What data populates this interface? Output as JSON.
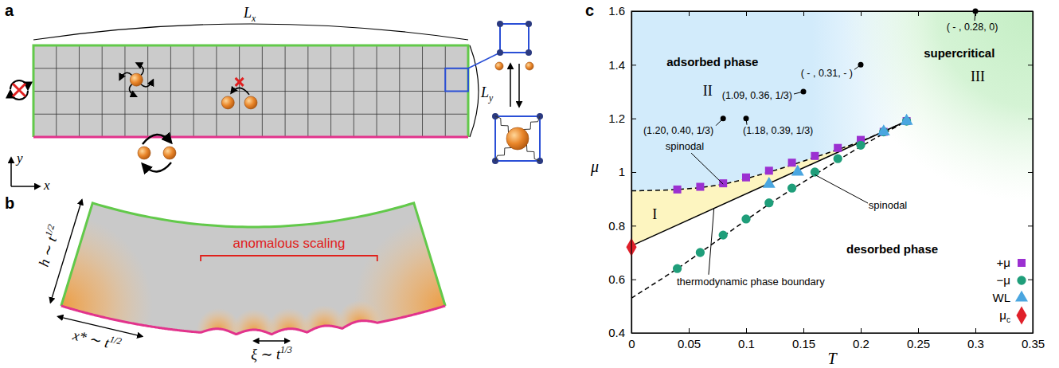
{
  "diagram_a": {
    "letter": "a",
    "length_x": {
      "text": "L",
      "sub": "x"
    },
    "length_y": {
      "text": "L",
      "sub": "y"
    },
    "axis_x": "x",
    "axis_y": "y"
  },
  "diagram_b": {
    "letter": "b",
    "height": {
      "text": "h ∼ t",
      "sup": "1/2"
    },
    "front": {
      "text": "x* ∼ t",
      "sup": "1/2"
    },
    "spacing": {
      "text": "ξ ∼ t",
      "sup": "1/3"
    },
    "region": "anomalous scaling"
  },
  "chart_data": {
    "letter": "c",
    "type": "scatter",
    "x_label": "T",
    "y_label": "μ",
    "xlim": [
      0,
      0.35
    ],
    "xticks": [
      0,
      0.05,
      0.1,
      0.15,
      0.2,
      0.25,
      0.3,
      0.35
    ],
    "ylim": [
      0.4,
      1.6
    ],
    "yticks": [
      0.4,
      0.6,
      0.8,
      1,
      1.2,
      1.4,
      1.6
    ],
    "legend": "bottom-right",
    "series": [
      {
        "name": "+μ",
        "color": "#9b30d1",
        "marker": "square",
        "x": [
          0.04,
          0.06,
          0.08,
          0.1,
          0.12,
          0.14,
          0.16,
          0.18,
          0.2,
          0.22,
          0.24
        ],
        "values": [
          0.935,
          0.945,
          0.958,
          0.98,
          1.005,
          1.035,
          1.06,
          1.09,
          1.12,
          1.15,
          1.19
        ]
      },
      {
        "name": "−μ",
        "color": "#1f9e7a",
        "marker": "circle",
        "x": [
          0.04,
          0.06,
          0.08,
          0.1,
          0.12,
          0.14,
          0.16,
          0.18,
          0.2,
          0.22,
          0.24
        ],
        "values": [
          0.64,
          0.7,
          0.765,
          0.825,
          0.885,
          0.94,
          1.0,
          1.05,
          1.1,
          1.15,
          1.19
        ]
      },
      {
        "name": "WL",
        "color": "#4aa6e0",
        "marker": "triangle",
        "x": [
          0.12,
          0.145,
          0.22,
          0.24
        ],
        "values": [
          0.955,
          1.0,
          1.15,
          1.19
        ]
      },
      {
        "name": "μ",
        "name_sub": "c",
        "color": "#e0202a",
        "marker": "diamond",
        "x": [
          0
        ],
        "values": [
          0.72
        ]
      }
    ],
    "lines": [
      {
        "label": "thermodynamic phase boundary",
        "line_style": "solid",
        "x": [
          0,
          0.24
        ],
        "values": [
          0.725,
          1.19
        ]
      },
      {
        "label": "spinodal",
        "line_style": "dashed",
        "x": [
          0,
          0.04,
          0.08,
          0.12,
          0.16,
          0.2,
          0.24
        ],
        "values": [
          0.93,
          0.935,
          0.955,
          1.0,
          1.055,
          1.115,
          1.19
        ]
      },
      {
        "label": "spinodal",
        "line_style": "dashed",
        "x": [
          0,
          0.04,
          0.08,
          0.12,
          0.16,
          0.2,
          0.24
        ],
        "values": [
          0.53,
          0.64,
          0.76,
          0.88,
          0.99,
          1.095,
          1.19
        ]
      }
    ],
    "annotations": [
      {
        "x": 0.08,
        "y": 1.2,
        "text": "(1.20, 0.40, 1/3)"
      },
      {
        "x": 0.1,
        "y": 1.2,
        "text": "(1.18, 0.39, 1/3)"
      },
      {
        "x": 0.15,
        "y": 1.3,
        "text": "(1.09, 0.36, 1/3)"
      },
      {
        "x": 0.2,
        "y": 1.4,
        "text": "( - , 0.31, - )"
      },
      {
        "x": 0.3,
        "y": 1.6,
        "text": "( - , 0.28, 0)"
      }
    ],
    "regions": [
      {
        "name": "adsorbed phase",
        "numeral": "II"
      },
      {
        "name": "supercritical",
        "numeral": "III"
      },
      {
        "numeral": "I"
      },
      {
        "name": "desorbed phase"
      }
    ]
  }
}
